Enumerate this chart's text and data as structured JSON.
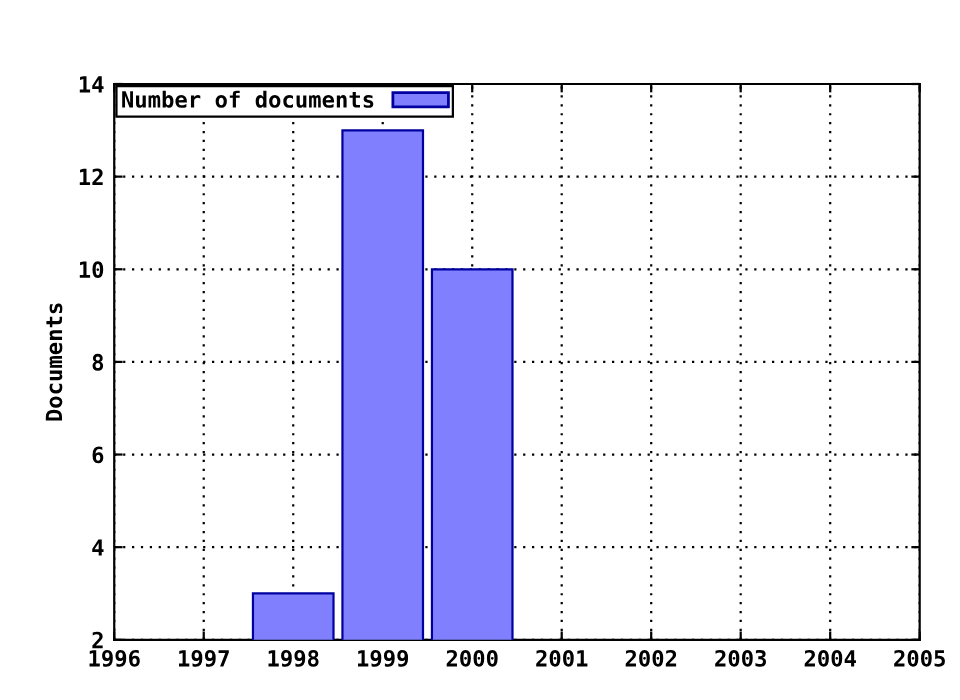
{
  "chart_data": {
    "type": "bar",
    "ylabel": "Documents",
    "x": [
      1998,
      1999,
      2000
    ],
    "series": [
      {
        "name": "Number of documents",
        "color": "#8080ff",
        "values": [
          3,
          13,
          10
        ]
      }
    ],
    "xlim": [
      1996,
      2005
    ],
    "xticks": [
      1996,
      1997,
      1998,
      1999,
      2000,
      2001,
      2002,
      2003,
      2004,
      2005
    ],
    "ylim": [
      2,
      14
    ],
    "yticks": [
      2,
      4,
      6,
      8,
      10,
      12,
      14
    ],
    "grid": true,
    "legend": "top left"
  }
}
